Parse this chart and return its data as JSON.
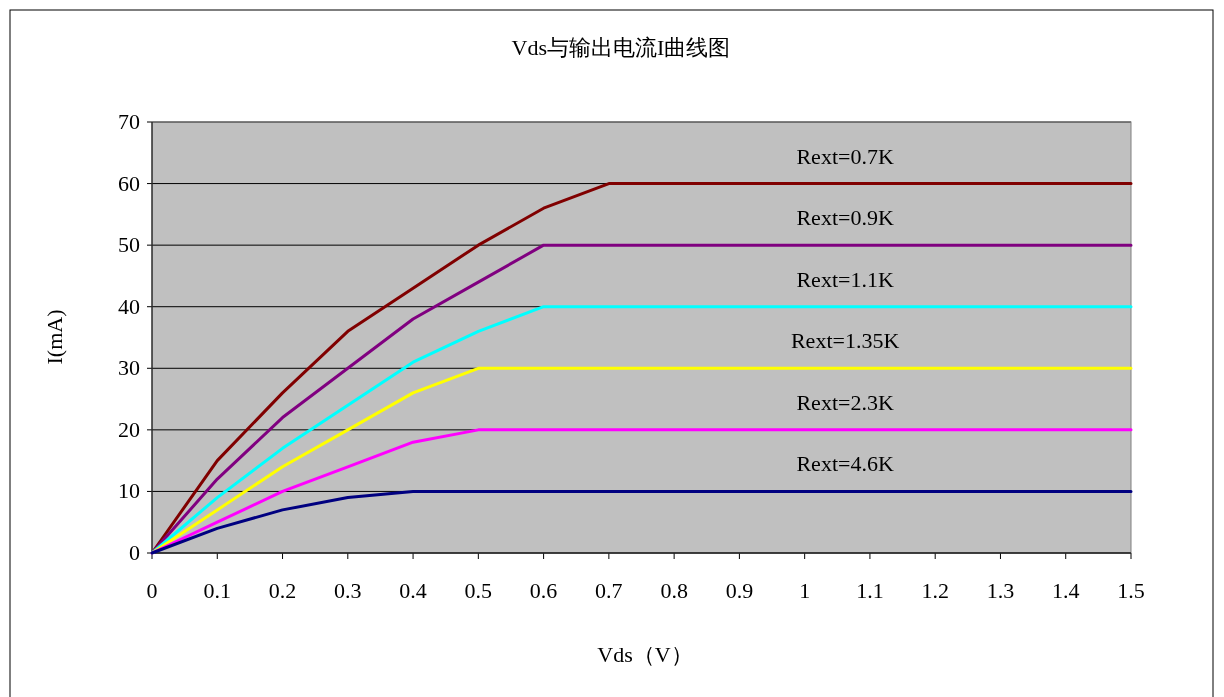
{
  "chart_data": {
    "type": "line",
    "title": "Vds与输出电流I曲线图",
    "xlabel": "Vds（V）",
    "ylabel": "I(mA)",
    "xlim": [
      0,
      1.5
    ],
    "ylim": [
      0,
      70
    ],
    "xticks": [
      0,
      0.1,
      0.2,
      0.3,
      0.4,
      0.5,
      0.6,
      0.7,
      0.8,
      0.9,
      1,
      1.1,
      1.2,
      1.3,
      1.4,
      1.5
    ],
    "yticks": [
      0,
      10,
      20,
      30,
      40,
      50,
      60,
      70
    ],
    "grid": "y",
    "series": [
      {
        "name": "Rext=0.7K",
        "color": "#800000",
        "x": [
          0,
          0.1,
          0.2,
          0.3,
          0.4,
          0.5,
          0.6,
          0.7,
          1.5
        ],
        "values": [
          0,
          15,
          26,
          36,
          43,
          50,
          56,
          60,
          60
        ]
      },
      {
        "name": "Rext=0.9K",
        "color": "#800080",
        "x": [
          0,
          0.1,
          0.2,
          0.3,
          0.4,
          0.5,
          0.6,
          1.5
        ],
        "values": [
          0,
          12,
          22,
          30,
          38,
          44,
          50,
          50
        ]
      },
      {
        "name": "Rext=1.1K",
        "color": "#00ffff",
        "x": [
          0,
          0.1,
          0.2,
          0.3,
          0.4,
          0.5,
          0.6,
          1.5
        ],
        "values": [
          0,
          9,
          17,
          24,
          31,
          36,
          40,
          40
        ]
      },
      {
        "name": "Rext=1.35K",
        "color": "#ffff00",
        "x": [
          0,
          0.1,
          0.2,
          0.3,
          0.4,
          0.5,
          1.5
        ],
        "values": [
          0,
          7,
          14,
          20,
          26,
          30,
          30
        ]
      },
      {
        "name": "Rext=2.3K",
        "color": "#ff00ff",
        "x": [
          0,
          0.1,
          0.2,
          0.3,
          0.4,
          0.5,
          1.5
        ],
        "values": [
          0,
          5,
          10,
          14,
          18,
          20,
          20
        ]
      },
      {
        "name": "Rext=4.6K",
        "color": "#000080",
        "x": [
          0,
          0.1,
          0.2,
          0.3,
          0.4,
          1.5
        ],
        "values": [
          0,
          4,
          7,
          9,
          10,
          10
        ]
      }
    ]
  }
}
